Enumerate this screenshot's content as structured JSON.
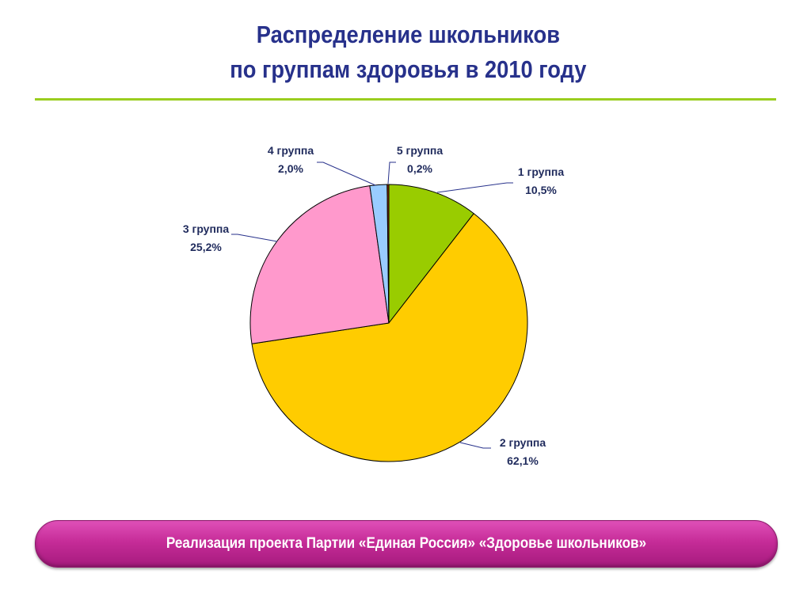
{
  "slide": {
    "title_line1": "Распределение школьников",
    "title_line2": "по группам здоровья в 2010 году",
    "footer": "Реализация проекта Партии «Единая Россия» «Здоровье школьников»"
  },
  "colors": {
    "title": "#27318b",
    "rule": "#9acd1f",
    "footer": "#c62c98"
  },
  "chart_data": {
    "type": "pie",
    "title": "",
    "slices": [
      {
        "name": "1 группа",
        "value": 10.5,
        "label": "10,5%",
        "color": "#99cc00"
      },
      {
        "name": "2 группа",
        "value": 62.1,
        "label": "62,1%",
        "color": "#ffcc00"
      },
      {
        "name": "3 группа",
        "value": 25.2,
        "label": "25,2%",
        "color": "#ff99cc"
      },
      {
        "name": "4 группа",
        "value": 2.0,
        "label": "2,0%",
        "color": "#99ccff"
      },
      {
        "name": "5 группа",
        "value": 0.2,
        "label": "0,2%",
        "color": "#993300"
      }
    ],
    "start": "12 o'clock",
    "direction": "clockwise",
    "legend": "none",
    "data_labels": "outside with leader lines"
  }
}
